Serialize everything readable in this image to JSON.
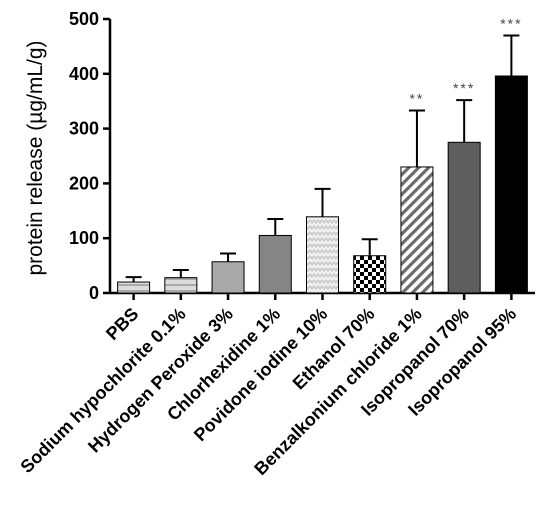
{
  "chart_data": {
    "type": "bar",
    "title": "",
    "xlabel": "",
    "ylabel": "protein release (µg/mL/g)",
    "ylim": [
      0,
      500
    ],
    "yticks": [
      0,
      100,
      200,
      300,
      400,
      500
    ],
    "grid": false,
    "legend": "none",
    "categories": [
      "PBS",
      "Sodium hypochlorite 0.1%",
      "Hydrogen Peroxide 3%",
      "Chlorhexidine 1%",
      "Povidone iodine 10%",
      "Ethanol 70%",
      "Benzalkonium chloride 1%",
      "Isopropanol 70%",
      "Isopropanol 95%"
    ],
    "values": [
      20,
      28,
      57,
      105,
      139,
      68,
      230,
      275,
      396
    ],
    "error_upper": [
      29,
      42,
      72,
      135,
      190,
      98,
      333,
      352,
      470
    ],
    "significance": [
      "",
      "",
      "",
      "",
      "",
      "",
      "**",
      "***",
      "***"
    ],
    "bar_fills": [
      "#d9d9d9 horizontal-lines",
      "#d9d9d9 horizontal-lines",
      "#a6a6a6 solid",
      "#808080 solid",
      "#bfbfbf zigzag",
      "checkerboard black/white",
      "diagonal-hatch gray/white",
      "#595959 solid",
      "#000000 solid"
    ]
  }
}
